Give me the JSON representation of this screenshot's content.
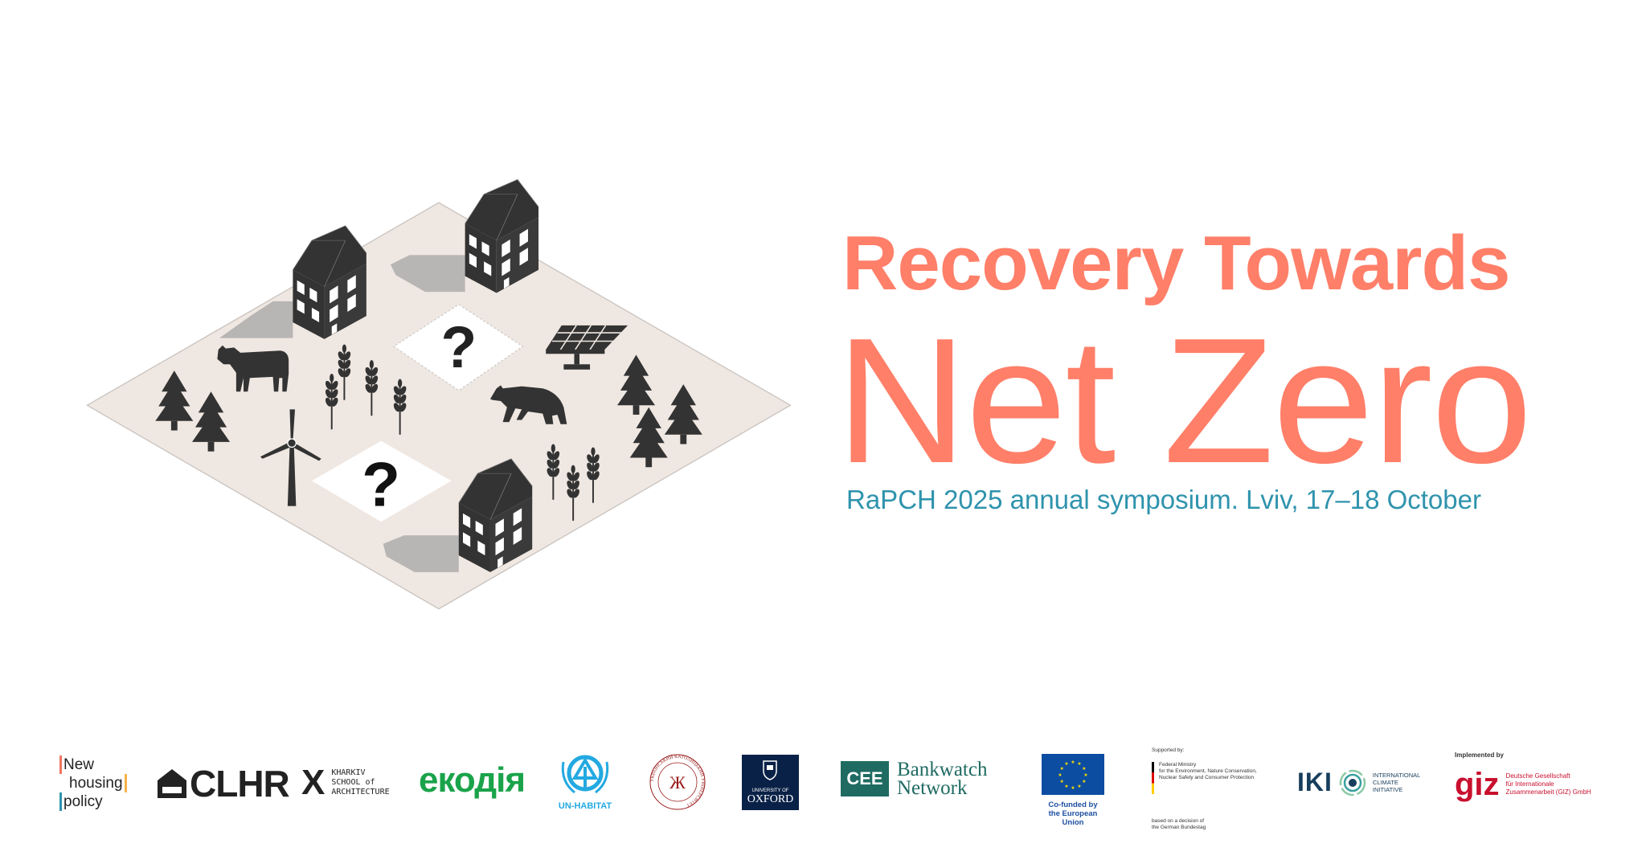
{
  "header": {
    "title_line1": "Recovery Towards",
    "title_line2": "Net Zero",
    "subtitle": "RaPCH 2025 annual symposium. Lviv, 17–18 October"
  },
  "colors": {
    "title": "#ff7f69",
    "subtitle": "#2f93ad",
    "ground": "#efe7e1",
    "icons": "#333333"
  },
  "illustration": {
    "question_mark": "?",
    "icons": [
      "building-icon",
      "tree-icon",
      "wheat-icon",
      "cow-icon",
      "bear-icon",
      "wind-turbine-icon",
      "solar-panel-icon"
    ]
  },
  "logos": {
    "new_housing_policy": [
      "New",
      "housing",
      "policy"
    ],
    "clhr": "CLHR",
    "kharkiv": {
      "mark": "X",
      "lines": [
        "KHARKIV",
        "SCHOOL of",
        "ARCHITECTURE"
      ]
    },
    "ekodia": "екодія",
    "un_habitat": "UN-HABITAT",
    "ucu": "УКРАЇНСЬКИЙ КАТОЛИЦЬКИЙ УНІВЕРСИТЕТ",
    "oxford": {
      "small": "UNIVERSITY OF",
      "big": "OXFORD"
    },
    "cee": {
      "box": "CEE",
      "line1": "Bankwatch",
      "line2": "Network"
    },
    "eu": {
      "line1": "Co-funded by",
      "line2": "the European Union"
    },
    "bmu": {
      "supported": "Supported by:",
      "lines": [
        "Federal Ministry",
        "for the Environment, Nature Conservation,",
        "Nuclear Safety and Consumer Protection"
      ],
      "decision": [
        "based on a decision of",
        "the German Bundestag"
      ]
    },
    "iki": {
      "mark": "IKI",
      "lines": [
        "INTERNATIONAL",
        "CLIMATE",
        "INITIATIVE"
      ]
    },
    "giz": {
      "implemented": "Implemented by",
      "mark": "giz",
      "lines": [
        "Deutsche Gesellschaft",
        "für Internationale",
        "Zusammenarbeit (GIZ) GmbH"
      ]
    }
  }
}
